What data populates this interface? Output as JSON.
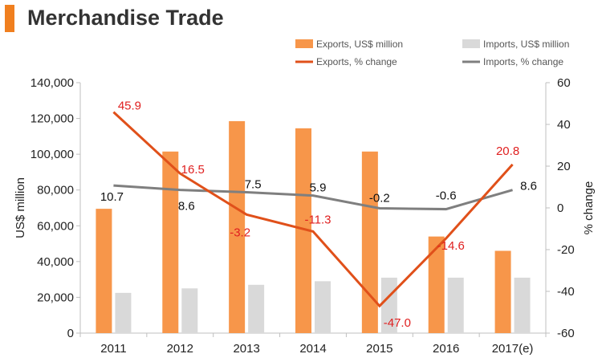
{
  "page": {
    "title": "Merchandise Trade"
  },
  "colors": {
    "exports_bar": "#f7964a",
    "imports_bar": "#d9d9d9",
    "exports_line": "#e0501a",
    "imports_line": "#7f7f7f",
    "exports_label": "#e02020",
    "imports_label": "#111111",
    "title_accent": "#f07f1f"
  },
  "chart_data": {
    "type": "bar",
    "title": "Merchandise Trade",
    "categories": [
      "2011",
      "2012",
      "2013",
      "2014",
      "2015",
      "2016",
      "2017(e)"
    ],
    "ylabel": "US$ million",
    "y2label": "% change",
    "ylim": [
      0,
      140000
    ],
    "y2lim": [
      -60,
      60
    ],
    "yticks": [
      "0",
      "20,000",
      "40,000",
      "60,000",
      "80,000",
      "100,000",
      "120,000",
      "140,000"
    ],
    "y2ticks": [
      "-60",
      "-40",
      "-20",
      "0",
      "20",
      "40",
      "60"
    ],
    "legend_position": "top-right",
    "grid": false,
    "series": [
      {
        "name": "Exports, US$ million",
        "kind": "bar",
        "axis": "left",
        "values": [
          69500,
          101500,
          118500,
          114500,
          101500,
          54000,
          46000
        ]
      },
      {
        "name": "Imports, US$ million",
        "kind": "bar",
        "axis": "left",
        "values": [
          22500,
          25000,
          27000,
          29000,
          31000,
          31000,
          31000
        ]
      },
      {
        "name": "Exports, % change",
        "kind": "line",
        "axis": "right",
        "values": [
          45.9,
          16.5,
          -3.2,
          -11.3,
          -47.0,
          -14.6,
          20.8
        ],
        "labels": [
          "45.9",
          "16.5",
          "-3.2",
          "-11.3",
          "-47.0",
          "-14.6",
          "20.8"
        ]
      },
      {
        "name": "Imports, % change",
        "kind": "line",
        "axis": "right",
        "values": [
          10.7,
          8.6,
          7.5,
          5.9,
          -0.2,
          -0.6,
          8.6
        ],
        "labels": [
          "10.7",
          "8.6",
          "7.5",
          "5.9",
          "-0.2",
          "-0.6",
          "8.6"
        ]
      }
    ]
  }
}
